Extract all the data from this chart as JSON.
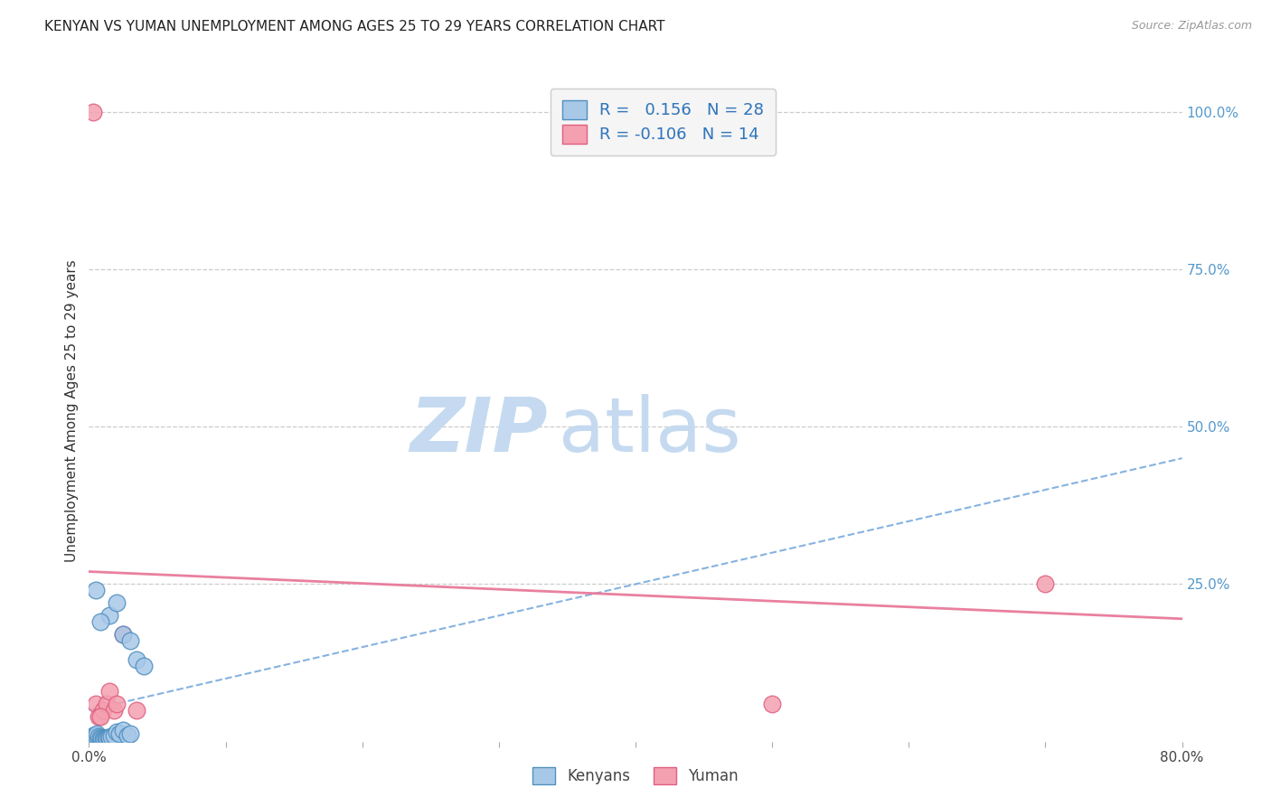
{
  "title": "KENYAN VS YUMAN UNEMPLOYMENT AMONG AGES 25 TO 29 YEARS CORRELATION CHART",
  "source": "Source: ZipAtlas.com",
  "ylabel": "Unemployment Among Ages 25 to 29 years",
  "xlim": [
    0.0,
    0.8
  ],
  "ylim": [
    0.0,
    1.05
  ],
  "xtick_vals": [
    0.0,
    0.1,
    0.2,
    0.3,
    0.4,
    0.5,
    0.6,
    0.7,
    0.8
  ],
  "xtick_labels": [
    "0.0%",
    "",
    "",
    "",
    "",
    "",
    "",
    "",
    "80.0%"
  ],
  "ytick_vals_right": [
    1.0,
    0.75,
    0.5,
    0.25
  ],
  "ytick_labels_right": [
    "100.0%",
    "75.0%",
    "50.0%",
    "25.0%"
  ],
  "kenyan_color": "#a8c8e8",
  "yuman_color": "#f4a0b0",
  "kenyan_edge": "#5090c0",
  "yuman_edge": "#e06080",
  "trend_kenyan_color": "#7aaadd",
  "trend_yuman_color": "#e8799a",
  "r_kenyan": 0.156,
  "n_kenyan": 28,
  "r_yuman": -0.106,
  "n_yuman": 14,
  "legend_label_kenyan": "Kenyans",
  "legend_label_yuman": "Yuman",
  "watermark_zip": "ZIP",
  "watermark_atlas": "atlas",
  "watermark_color_zip": "#c5daf0",
  "watermark_color_atlas": "#c5daf0",
  "kenyan_x": [
    0.003,
    0.004,
    0.005,
    0.006,
    0.007,
    0.008,
    0.009,
    0.01,
    0.011,
    0.012,
    0.013,
    0.014,
    0.015,
    0.016,
    0.018,
    0.02,
    0.022,
    0.025,
    0.028,
    0.03,
    0.015,
    0.02,
    0.025,
    0.03,
    0.035,
    0.04,
    0.005,
    0.008
  ],
  "kenyan_y": [
    0.01,
    0.008,
    0.01,
    0.012,
    0.008,
    0.006,
    0.005,
    0.005,
    0.004,
    0.005,
    0.005,
    0.006,
    0.007,
    0.008,
    0.01,
    0.015,
    0.012,
    0.018,
    0.01,
    0.012,
    0.2,
    0.22,
    0.17,
    0.16,
    0.13,
    0.12,
    0.24,
    0.19
  ],
  "yuman_x": [
    0.003,
    0.005,
    0.007,
    0.01,
    0.013,
    0.015,
    0.018,
    0.02,
    0.025,
    0.035,
    0.5,
    0.7,
    0.005,
    0.008
  ],
  "yuman_y": [
    1.0,
    0.06,
    0.04,
    0.05,
    0.06,
    0.08,
    0.05,
    0.06,
    0.17,
    0.05,
    0.06,
    0.25,
    0.01,
    0.04
  ],
  "trend_kenyan_x0": 0.0,
  "trend_kenyan_y0": 0.05,
  "trend_kenyan_x1": 0.8,
  "trend_kenyan_y1": 0.45,
  "trend_yuman_x0": 0.0,
  "trend_yuman_y0": 0.27,
  "trend_yuman_x1": 0.8,
  "trend_yuman_y1": 0.195,
  "marker_size": 180,
  "bg_color": "#ffffff",
  "grid_color": "#cccccc"
}
